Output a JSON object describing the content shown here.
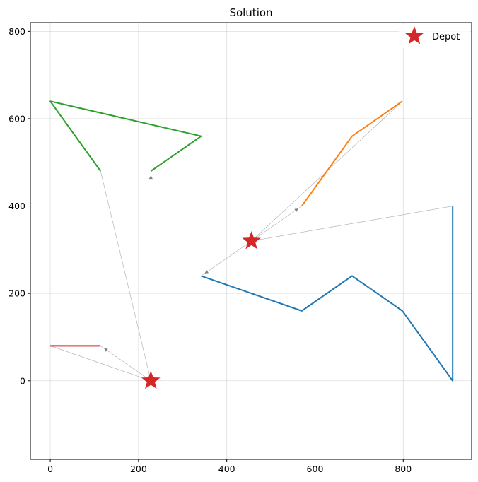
{
  "chart_data": {
    "type": "line",
    "title": "Solution",
    "xlabel": "",
    "ylabel": "",
    "xlim": [
      -45,
      955
    ],
    "ylim": [
      -180,
      820
    ],
    "xticks": [
      0,
      200,
      400,
      600,
      800
    ],
    "yticks": [
      0,
      200,
      400,
      600,
      800
    ],
    "grid": true,
    "legend": {
      "placement": "top-right",
      "entries": [
        {
          "label": "Depot",
          "marker": "star",
          "color": "#d62728"
        }
      ]
    },
    "depots": [
      {
        "x": 228,
        "y": 0
      },
      {
        "x": 456,
        "y": 320
      }
    ],
    "routes": [
      {
        "color": "#1f77b4",
        "points": [
          [
            342,
            240
          ],
          [
            570,
            160
          ],
          [
            684,
            240
          ],
          [
            798,
            160
          ],
          [
            912,
            0
          ],
          [
            912,
            400
          ]
        ]
      },
      {
        "color": "#ff7f0e",
        "points": [
          [
            570,
            400
          ],
          [
            684,
            560
          ],
          [
            798,
            640
          ]
        ]
      },
      {
        "color": "#2ca02c",
        "points": [
          [
            228,
            480
          ],
          [
            342,
            560
          ],
          [
            0,
            640
          ],
          [
            114,
            480
          ]
        ]
      },
      {
        "color": "#d62728",
        "points": [
          [
            114,
            80
          ],
          [
            0,
            80
          ]
        ]
      }
    ],
    "connectors": [
      {
        "from": [
          456,
          320
        ],
        "to": [
          342,
          240
        ],
        "arrow": true
      },
      {
        "from": [
          456,
          320
        ],
        "to": [
          570,
          400
        ],
        "arrow": true
      },
      {
        "from": [
          798,
          640
        ],
        "to": [
          456,
          320
        ],
        "arrow": false
      },
      {
        "from": [
          912,
          400
        ],
        "to": [
          456,
          320
        ],
        "arrow": false
      },
      {
        "from": [
          228,
          0
        ],
        "to": [
          228,
          480
        ],
        "arrow": true
      },
      {
        "from": [
          114,
          480
        ],
        "to": [
          228,
          0
        ],
        "arrow": false
      },
      {
        "from": [
          228,
          0
        ],
        "to": [
          114,
          80
        ],
        "arrow": true
      },
      {
        "from": [
          0,
          80
        ],
        "to": [
          228,
          0
        ],
        "arrow": false
      }
    ]
  }
}
